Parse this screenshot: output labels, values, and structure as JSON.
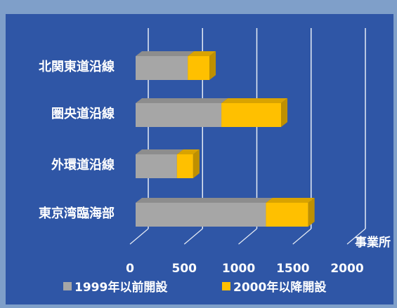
{
  "colors": {
    "background": "#2f56a6",
    "frame": "#7f9fc9",
    "grid": "#e6ecf5",
    "series_1999": "#a6a6a6",
    "series_2000": "#ffc000",
    "text": "#ffffff"
  },
  "chart_data": {
    "type": "bar",
    "orientation": "horizontal",
    "stacked": true,
    "style": "3d",
    "categories": [
      "北関東道沿線",
      "圏央道沿線",
      "外環道沿線",
      "東京湾臨海部"
    ],
    "series": [
      {
        "name": "1999年以前開設",
        "values": [
          480,
          790,
          380,
          1200
        ]
      },
      {
        "name": "2000年以降開設",
        "values": [
          200,
          550,
          150,
          390
        ]
      }
    ],
    "xlim": [
      0,
      2000
    ],
    "xticks": [
      "0",
      "500",
      "1000",
      "1500",
      "2000"
    ],
    "xunit": "事業所",
    "grid": true,
    "legend_position": "bottom"
  }
}
